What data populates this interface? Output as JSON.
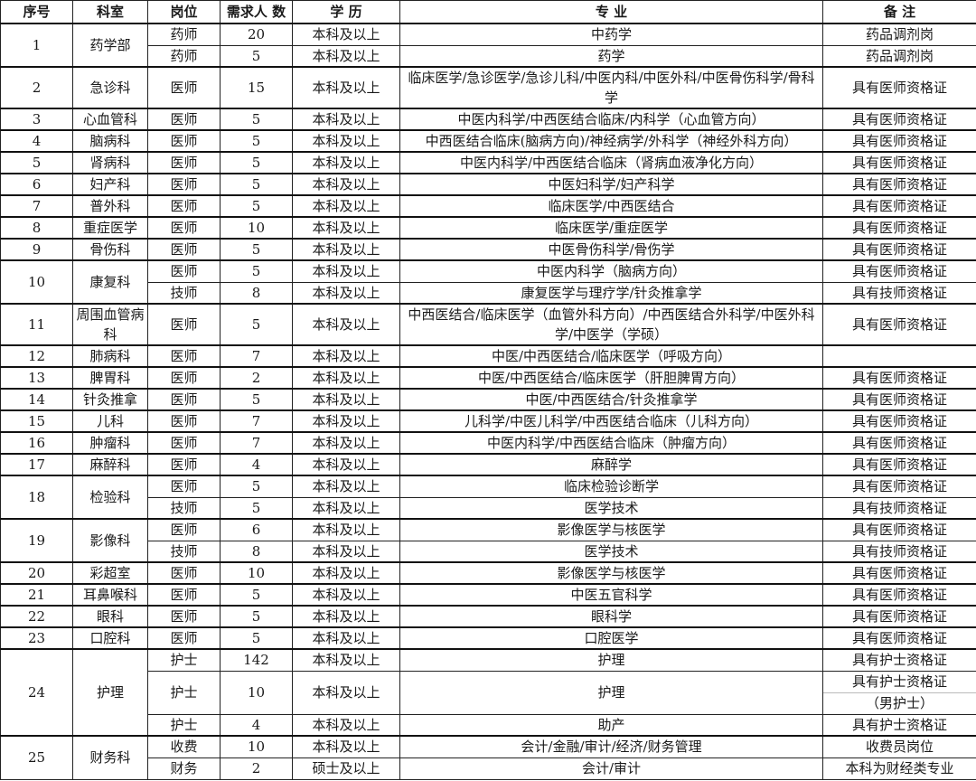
{
  "headers": {
    "no": "序号",
    "dept": "科室",
    "post": "岗位",
    "count": "需求人 数",
    "edu": "学 历",
    "major": "专 业",
    "remark": "备 注"
  },
  "departments": [
    {
      "no": "1",
      "name": "药学部",
      "positions": [
        {
          "post": "药师",
          "count": "20",
          "edu": "本科及以上",
          "major": "中药学",
          "remark": "药品调剂岗"
        },
        {
          "post": "药师",
          "count": "5",
          "edu": "本科及以上",
          "major": "药学",
          "remark": "药品调剂岗"
        }
      ]
    },
    {
      "no": "2",
      "name": "急诊科",
      "positions": [
        {
          "post": "医师",
          "count": "15",
          "edu": "本科及以上",
          "major": "临床医学/急诊医学/急诊儿科/中医内科/中医外科/中医骨伤科学/骨科学",
          "remark": "具有医师资格证",
          "tall": true
        }
      ]
    },
    {
      "no": "3",
      "name": "心血管科",
      "positions": [
        {
          "post": "医师",
          "count": "5",
          "edu": "本科及以上",
          "major": "中医内科学/中西医结合临床/内科学（心血管方向）",
          "remark": "具有医师资格证"
        }
      ]
    },
    {
      "no": "4",
      "name": "脑病科",
      "positions": [
        {
          "post": "医师",
          "count": "5",
          "edu": "本科及以上",
          "major": "中西医结合临床(脑病方向)/神经病学/外科学（神经外科方向）",
          "remark": "具有医师资格证"
        }
      ]
    },
    {
      "no": "5",
      "name": "肾病科",
      "positions": [
        {
          "post": "医师",
          "count": "5",
          "edu": "本科及以上",
          "major": "中医内科学/中西医结合临床（肾病血液净化方向）",
          "remark": "具有医师资格证"
        }
      ]
    },
    {
      "no": "6",
      "name": "妇产科",
      "positions": [
        {
          "post": "医师",
          "count": "5",
          "edu": "本科及以上",
          "major": "中医妇科学/妇产科学",
          "remark": "具有医师资格证"
        }
      ]
    },
    {
      "no": "7",
      "name": "普外科",
      "positions": [
        {
          "post": "医师",
          "count": "5",
          "edu": "本科及以上",
          "major": "临床医学/中西医结合",
          "remark": "具有医师资格证"
        }
      ]
    },
    {
      "no": "8",
      "name": "重症医学",
      "positions": [
        {
          "post": "医师",
          "count": "10",
          "edu": "本科及以上",
          "major": "临床医学/重症医学",
          "remark": "具有医师资格证"
        }
      ]
    },
    {
      "no": "9",
      "name": "骨伤科",
      "positions": [
        {
          "post": "医师",
          "count": "5",
          "edu": "本科及以上",
          "major": "中医骨伤科学/骨伤学",
          "remark": "具有医师资格证"
        }
      ]
    },
    {
      "no": "10",
      "name": "康复科",
      "positions": [
        {
          "post": "医师",
          "count": "5",
          "edu": "本科及以上",
          "major": "中医内科学（脑病方向）",
          "remark": "具有医师资格证"
        },
        {
          "post": "技师",
          "count": "8",
          "edu": "本科及以上",
          "major": "康复医学与理疗学/针灸推拿学",
          "remark": "具有技师资格证"
        }
      ]
    },
    {
      "no": "11",
      "name": "周围血管病科",
      "positions": [
        {
          "post": "医师",
          "count": "5",
          "edu": "本科及以上",
          "major": "中西医结合/临床医学（血管外科方向）/中西医结合外科学/中医外科学/中医学（学硕）",
          "remark": "具有医师资格证",
          "tall": true
        }
      ]
    },
    {
      "no": "12",
      "name": "肺病科",
      "positions": [
        {
          "post": "医师",
          "count": "7",
          "edu": "本科及以上",
          "major": "中医/中西医结合/临床医学（呼吸方向）",
          "remark": ""
        }
      ]
    },
    {
      "no": "13",
      "name": "脾胃科",
      "positions": [
        {
          "post": "医师",
          "count": "2",
          "edu": "本科及以上",
          "major": "中医/中西医结合/临床医学（肝胆脾胃方向）",
          "remark": "具有医师资格证"
        }
      ]
    },
    {
      "no": "14",
      "name": "针灸推拿",
      "positions": [
        {
          "post": "医师",
          "count": "5",
          "edu": "本科及以上",
          "major": "中医/中西医结合/针灸推拿学",
          "remark": "具有医师资格证"
        }
      ]
    },
    {
      "no": "15",
      "name": "儿科",
      "positions": [
        {
          "post": "医师",
          "count": "7",
          "edu": "本科及以上",
          "major": "儿科学/中医儿科学/中西医结合临床（儿科方向）",
          "remark": "具有医师资格证"
        }
      ]
    },
    {
      "no": "16",
      "name": "肿瘤科",
      "positions": [
        {
          "post": "医师",
          "count": "7",
          "edu": "本科及以上",
          "major": "中医内科学/中西医结合临床（肿瘤方向）",
          "remark": "具有医师资格证"
        }
      ]
    },
    {
      "no": "17",
      "name": "麻醉科",
      "positions": [
        {
          "post": "医师",
          "count": "4",
          "edu": "本科及以上",
          "major": "麻醉学",
          "remark": "具有医师资格证"
        }
      ]
    },
    {
      "no": "18",
      "name": "检验科",
      "positions": [
        {
          "post": "医师",
          "count": "5",
          "edu": "本科及以上",
          "major": "临床检验诊断学",
          "remark": "具有医师资格证"
        },
        {
          "post": "技师",
          "count": "5",
          "edu": "本科及以上",
          "major": "医学技术",
          "remark": "具有技师资格证"
        }
      ]
    },
    {
      "no": "19",
      "name": "影像科",
      "positions": [
        {
          "post": "医师",
          "count": "6",
          "edu": "本科及以上",
          "major": "影像医学与核医学",
          "remark": "具有医师资格证"
        },
        {
          "post": "技师",
          "count": "8",
          "edu": "本科及以上",
          "major": "医学技术",
          "remark": "具有技师资格证"
        }
      ]
    },
    {
      "no": "20",
      "name": "彩超室",
      "positions": [
        {
          "post": "医师",
          "count": "10",
          "edu": "本科及以上",
          "major": "影像医学与核医学",
          "remark": "具有医师资格证"
        }
      ]
    },
    {
      "no": "21",
      "name": "耳鼻喉科",
      "positions": [
        {
          "post": "医师",
          "count": "5",
          "edu": "本科及以上",
          "major": "中医五官科学",
          "remark": "具有医师资格证"
        }
      ]
    },
    {
      "no": "22",
      "name": "眼科",
      "positions": [
        {
          "post": "医师",
          "count": "5",
          "edu": "本科及以上",
          "major": "眼科学",
          "remark": "具有医师资格证"
        }
      ]
    },
    {
      "no": "23",
      "name": "口腔科",
      "positions": [
        {
          "post": "医师",
          "count": "5",
          "edu": "本科及以上",
          "major": "口腔医学",
          "remark": "具有医师资格证"
        }
      ]
    },
    {
      "no": "24",
      "name": "护理",
      "positions": [
        {
          "post": "护士",
          "count": "142",
          "edu": "本科及以上",
          "major": "护理",
          "remark": "具有护士资格证"
        },
        {
          "post": "护士",
          "count": "10",
          "edu": "本科及以上",
          "major": "护理",
          "remark": "具有护士资格证",
          "remark2": "（男护士）",
          "tall": true
        },
        {
          "post": "护士",
          "count": "4",
          "edu": "本科及以上",
          "major": "助产",
          "remark": "具有护士资格证"
        }
      ]
    },
    {
      "no": "25",
      "name": "财务科",
      "positions": [
        {
          "post": "收费",
          "count": "10",
          "edu": "本科及以上",
          "major": "会计/金融/审计/经济/财务管理",
          "remark": "收费员岗位"
        },
        {
          "post": "财务",
          "count": "2",
          "edu": "硕士及以上",
          "major": "会计/审计",
          "remark": "本科为财经类专业"
        }
      ]
    }
  ]
}
